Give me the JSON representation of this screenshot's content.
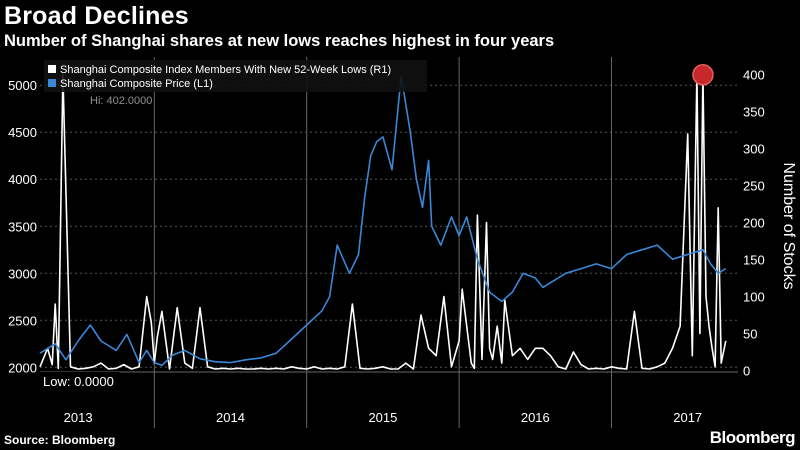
{
  "header": {
    "title": "Broad Declines",
    "subtitle": "Number of Shanghai shares at new lows reaches highest in four years"
  },
  "footer": {
    "source": "Source: Bloomberg",
    "brand": "Bloomberg"
  },
  "colors": {
    "background": "#000000",
    "price_line": "#3a87d6",
    "lows_line": "#ffffff",
    "highlight": "#c8282c"
  },
  "chart_data": {
    "type": "line",
    "title": "Broad Declines",
    "subtitle": "Number of Shanghai shares at new lows reaches highest in four years",
    "xlabel": "",
    "ylabel_left": "",
    "ylabel_right": "Number of Stocks",
    "xlim": [
      2012.75,
      2017.33
    ],
    "ylim_left": [
      1950,
      5300
    ],
    "ylim_right": [
      -2,
      424
    ],
    "yticks_left": [
      2000,
      2500,
      3000,
      3500,
      4000,
      4500,
      5000
    ],
    "yticks_right": [
      0,
      50,
      100,
      150,
      200,
      250,
      300,
      350,
      400
    ],
    "x_tick_labels": [
      "2013",
      "2014",
      "2015",
      "2016",
      "2017"
    ],
    "x_tick_positions": [
      2013.0,
      2014.0,
      2015.0,
      2016.0,
      2017.0
    ],
    "year_dividers": [
      2013.5,
      2014.5,
      2015.5,
      2016.5
    ],
    "legend": [
      "Shanghai Composite Index Members With New 52-Week Lows (R1)",
      "Shanghai Composite Price (L1)"
    ],
    "annotations": {
      "low_label": "Low: 0.0000",
      "high_label": "Hi: 402.0000"
    },
    "series": [
      {
        "name": "Shanghai Composite Price (L1)",
        "axis": "left",
        "x": [
          2012.75,
          2012.85,
          2012.92,
          2013.0,
          2013.08,
          2013.15,
          2013.25,
          2013.32,
          2013.4,
          2013.45,
          2013.5,
          2013.55,
          2013.62,
          2013.7,
          2013.8,
          2013.9,
          2014.0,
          2014.1,
          2014.2,
          2014.3,
          2014.4,
          2014.5,
          2014.6,
          2014.65,
          2014.7,
          2014.78,
          2014.84,
          2014.88,
          2014.92,
          2014.96,
          2015.0,
          2015.06,
          2015.12,
          2015.18,
          2015.22,
          2015.26,
          2015.3,
          2015.32,
          2015.38,
          2015.45,
          2015.5,
          2015.55,
          2015.62,
          2015.7,
          2015.78,
          2015.85,
          2015.92,
          2016.0,
          2016.05,
          2016.1,
          2016.2,
          2016.3,
          2016.4,
          2016.5,
          2016.6,
          2016.7,
          2016.8,
          2016.9,
          2017.0,
          2017.1,
          2017.15,
          2017.2,
          2017.25
        ],
        "values": [
          2150,
          2250,
          2080,
          2280,
          2450,
          2280,
          2180,
          2350,
          2050,
          2180,
          2050,
          2020,
          2130,
          2180,
          2090,
          2060,
          2050,
          2080,
          2100,
          2150,
          2300,
          2450,
          2600,
          2750,
          3300,
          3000,
          3200,
          3800,
          4250,
          4400,
          4450,
          4100,
          5100,
          4500,
          4000,
          3700,
          4200,
          3500,
          3300,
          3600,
          3400,
          3600,
          3150,
          2800,
          2700,
          2800,
          3000,
          2950,
          2850,
          2900,
          3000,
          3050,
          3100,
          3050,
          3200,
          3250,
          3300,
          3150,
          3200,
          3250,
          3100,
          3000,
          3050
        ]
      },
      {
        "name": "Shanghai Composite Index Members With New 52-Week Lows (R1)",
        "axis": "right",
        "x": [
          2012.75,
          2012.8,
          2012.83,
          2012.85,
          2012.87,
          2012.9,
          2012.95,
          2013.0,
          2013.05,
          2013.1,
          2013.15,
          2013.2,
          2013.25,
          2013.3,
          2013.35,
          2013.4,
          2013.45,
          2013.48,
          2013.5,
          2013.52,
          2013.55,
          2013.6,
          2013.65,
          2013.7,
          2013.75,
          2013.8,
          2013.85,
          2013.9,
          2013.95,
          2014.0,
          2014.05,
          2014.1,
          2014.15,
          2014.2,
          2014.25,
          2014.3,
          2014.35,
          2014.4,
          2014.45,
          2014.5,
          2014.55,
          2014.6,
          2014.65,
          2014.7,
          2014.75,
          2014.8,
          2014.85,
          2014.9,
          2014.95,
          2015.0,
          2015.05,
          2015.1,
          2015.15,
          2015.2,
          2015.25,
          2015.3,
          2015.35,
          2015.4,
          2015.45,
          2015.5,
          2015.52,
          2015.55,
          2015.58,
          2015.6,
          2015.62,
          2015.65,
          2015.68,
          2015.7,
          2015.72,
          2015.75,
          2015.78,
          2015.8,
          2015.85,
          2015.9,
          2015.95,
          2016.0,
          2016.05,
          2016.1,
          2016.15,
          2016.2,
          2016.25,
          2016.3,
          2016.35,
          2016.4,
          2016.45,
          2016.5,
          2016.55,
          2016.6,
          2016.65,
          2016.7,
          2016.75,
          2016.8,
          2016.85,
          2016.9,
          2016.95,
          2017.0,
          2017.03,
          2017.06,
          2017.08,
          2017.1,
          2017.12,
          2017.14,
          2017.16,
          2017.18,
          2017.2,
          2017.22,
          2017.25
        ],
        "values": [
          5,
          30,
          8,
          90,
          3,
          400,
          5,
          2,
          3,
          5,
          10,
          2,
          3,
          8,
          2,
          5,
          100,
          65,
          10,
          45,
          80,
          2,
          85,
          10,
          3,
          85,
          5,
          2,
          3,
          2,
          3,
          2,
          2,
          3,
          2,
          3,
          2,
          5,
          3,
          2,
          5,
          2,
          3,
          2,
          5,
          90,
          3,
          2,
          3,
          5,
          2,
          2,
          10,
          2,
          75,
          30,
          20,
          100,
          5,
          40,
          110,
          60,
          10,
          3,
          210,
          15,
          200,
          30,
          15,
          60,
          10,
          95,
          20,
          30,
          15,
          30,
          30,
          20,
          5,
          2,
          25,
          8,
          2,
          3,
          2,
          5,
          3,
          2,
          80,
          3,
          2,
          5,
          10,
          30,
          60,
          320,
          20,
          400,
          50,
          402,
          100,
          60,
          30,
          5,
          220,
          10,
          40
        ]
      }
    ]
  }
}
